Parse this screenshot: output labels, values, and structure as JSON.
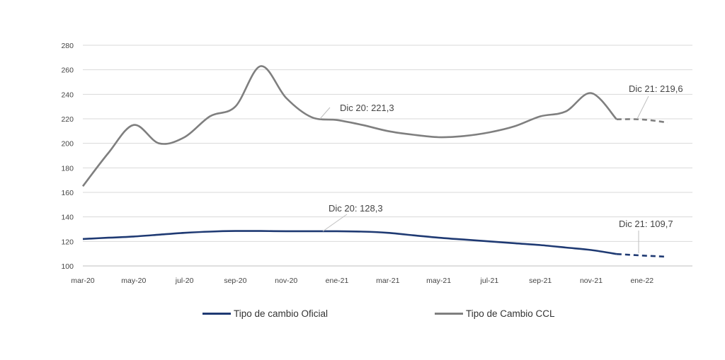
{
  "chart_data": {
    "type": "line",
    "title": "",
    "xlabel": "",
    "ylabel": "",
    "ylim": [
      100,
      280
    ],
    "y_ticks": [
      100,
      120,
      140,
      160,
      180,
      200,
      220,
      240,
      260,
      280
    ],
    "x_ticks": [
      "mar-20",
      "may-20",
      "jul-20",
      "sep-20",
      "nov-20",
      "ene-21",
      "mar-21",
      "may-21",
      "jul-21",
      "sep-21",
      "nov-21",
      "ene-22"
    ],
    "grid": true,
    "legend_position": "bottom",
    "series": [
      {
        "name": "Tipo de cambio Oficial",
        "color": "#1f3a73",
        "x": [
          "2020-03",
          "2020-04",
          "2020-05",
          "2020-06",
          "2020-07",
          "2020-08",
          "2020-09",
          "2020-10",
          "2020-11",
          "2020-12",
          "2021-01",
          "2021-02",
          "2021-03",
          "2021-04",
          "2021-05",
          "2021-06",
          "2021-07",
          "2021-08",
          "2021-09",
          "2021-10",
          "2021-11",
          "2021-12"
        ],
        "values": [
          122,
          123,
          124,
          125.5,
          127,
          128,
          128.5,
          128.5,
          128.3,
          128.3,
          128.3,
          128,
          127,
          125,
          123,
          121.5,
          120,
          118.5,
          117,
          115,
          113,
          109.7
        ],
        "projection": {
          "x": [
            "2021-12",
            "2022-01",
            "2022-02"
          ],
          "values": [
            109.7,
            108.5,
            107.5
          ]
        }
      },
      {
        "name": "Tipo de Cambio CCL",
        "color": "#7f7f7f",
        "x": [
          "2020-03",
          "2020-04",
          "2020-05",
          "2020-06",
          "2020-07",
          "2020-08",
          "2020-09",
          "2020-10",
          "2020-11",
          "2020-12",
          "2021-01",
          "2021-02",
          "2021-03",
          "2021-04",
          "2021-05",
          "2021-06",
          "2021-07",
          "2021-08",
          "2021-09",
          "2021-10",
          "2021-11",
          "2021-12"
        ],
        "values": [
          165,
          192,
          215,
          200,
          205,
          222,
          230,
          263,
          237,
          221.3,
          219,
          215,
          210,
          207,
          205,
          206,
          209,
          214,
          222,
          226,
          241,
          219.6
        ],
        "projection": {
          "x": [
            "2021-12",
            "2022-01",
            "2022-02"
          ],
          "values": [
            219.6,
            219.5,
            217
          ]
        }
      }
    ],
    "annotations": [
      {
        "id": "ccl-dic20",
        "text": "Dic 20: 221,3",
        "series": 1,
        "x": "2020-12"
      },
      {
        "id": "ccl-dic21",
        "text": "Dic 21: 219,6",
        "series": 1,
        "x": "2021-12"
      },
      {
        "id": "of-dic20",
        "text": "Dic 20: 128,3",
        "series": 0,
        "x": "2020-12"
      },
      {
        "id": "of-dic21",
        "text": "Dic 21: 109,7",
        "series": 0,
        "x": "2021-12"
      }
    ]
  },
  "colors": {
    "grid": "#d9d9d9",
    "axis": "#bfbfbf",
    "oficial": "#1f3a73",
    "ccl": "#7f7f7f"
  }
}
